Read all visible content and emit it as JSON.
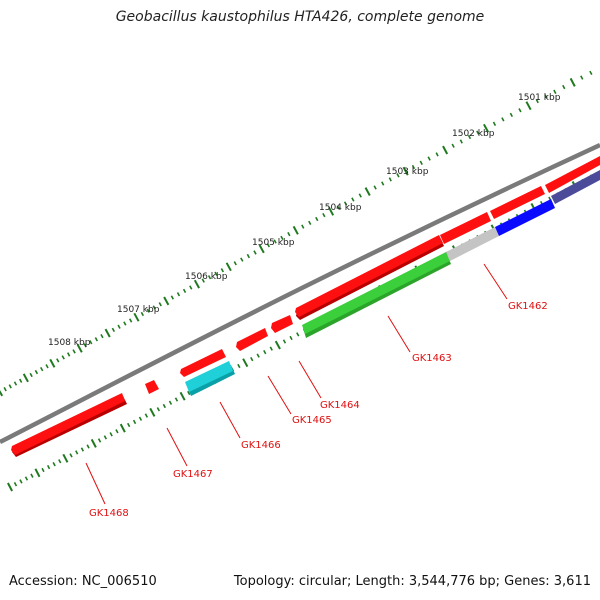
{
  "title": "Geobacillus kaustophilus HTA426, complete genome",
  "footer": {
    "accession": "Accession: NC_006510",
    "topology": "Topology: circular; Length: 3,544,776 bp; Genes: 3,611"
  },
  "ruler_labels": [
    "1501 kbp",
    "1502 kbp",
    "1503 kbp",
    "1504 kbp",
    "1505 kbp",
    "1506 kbp",
    "1507 kbp",
    "1508 kbp"
  ],
  "genes": [
    "GK1462",
    "GK1463",
    "GK1464",
    "GK1465",
    "GK1466",
    "GK1467",
    "GK1468"
  ],
  "colors": {
    "backbone": "#7a7a7a",
    "ruler_tick": "#1f7a1f",
    "gene_red": "#ff0000",
    "gene_green": "#3ccf3c",
    "gene_gray": "#c0c0c0",
    "gene_blue": "#0a0aff",
    "gene_slate": "#4b4b9a",
    "gene_cyan": "#20d0d8",
    "label_red": "#e01010"
  }
}
